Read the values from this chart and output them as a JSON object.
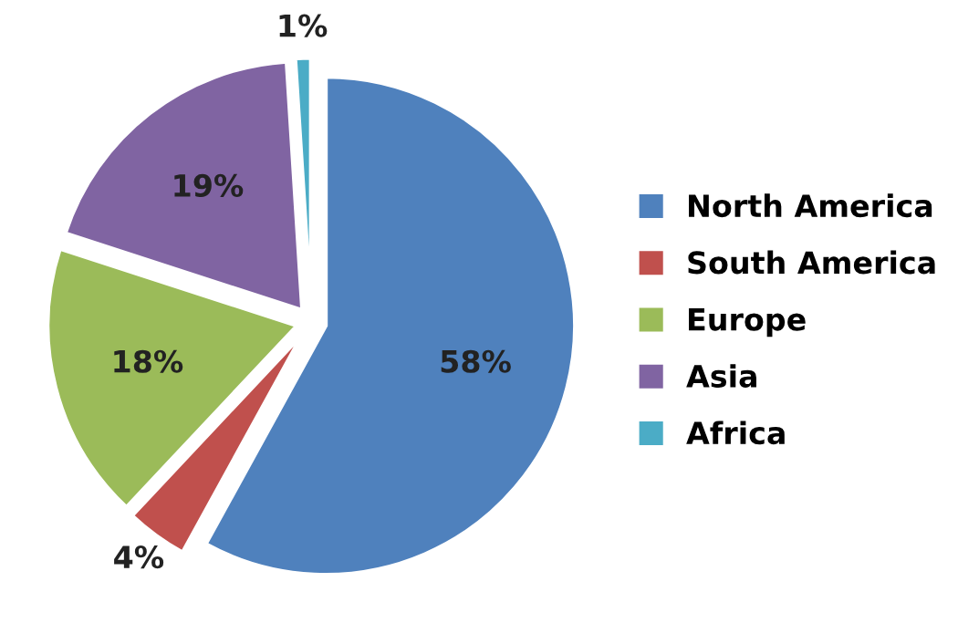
{
  "chart_data": {
    "type": "pie",
    "categories": [
      "North America",
      "South America",
      "Europe",
      "Asia",
      "Africa"
    ],
    "values": [
      58,
      4,
      18,
      19,
      1
    ],
    "value_labels": [
      "58%",
      "4%",
      "18%",
      "19%",
      "1%"
    ],
    "colors": [
      "#4f81bd",
      "#c0504d",
      "#9bbb59",
      "#8064a2",
      "#4bacc6"
    ],
    "legend": "right"
  }
}
